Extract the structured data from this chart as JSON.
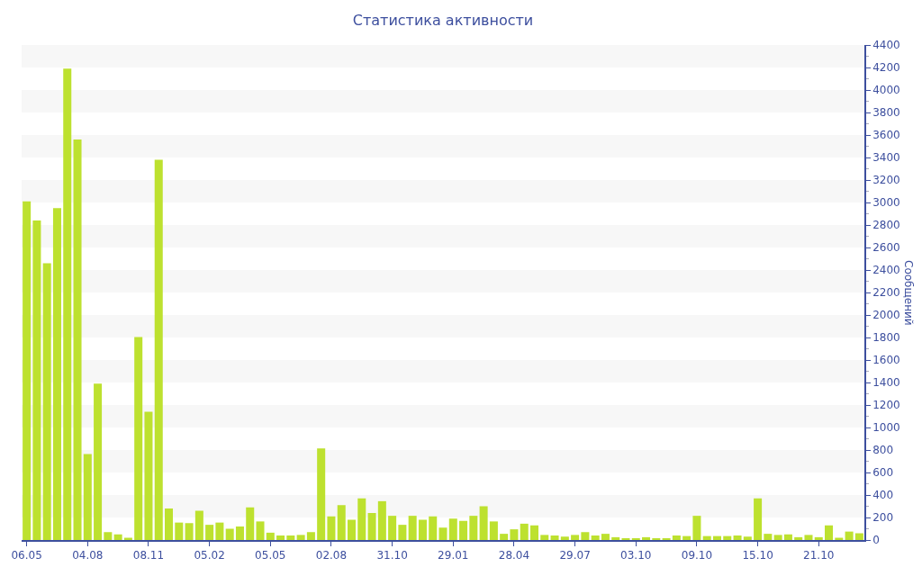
{
  "chart_data": {
    "type": "bar",
    "title": "Статистика активности",
    "ylabel": "Сообщений",
    "categories": [
      "06.05",
      null,
      null,
      null,
      null,
      null,
      "04.08",
      null,
      null,
      null,
      null,
      null,
      "08.11",
      null,
      null,
      null,
      null,
      null,
      "05.02",
      null,
      null,
      null,
      null,
      null,
      "05.05",
      null,
      null,
      null,
      null,
      null,
      "02.08",
      null,
      null,
      null,
      null,
      null,
      "31.10",
      null,
      null,
      null,
      null,
      null,
      "29.01",
      null,
      null,
      null,
      null,
      null,
      "28.04",
      null,
      null,
      null,
      null,
      null,
      "29.07",
      null,
      null,
      null,
      null,
      null,
      "03.10",
      null,
      null,
      null,
      null,
      null,
      "09.10",
      null,
      null,
      null,
      null,
      null,
      "15.10",
      null,
      null,
      null,
      null,
      null,
      "21.10",
      null,
      null,
      null,
      null
    ],
    "values": [
      3010,
      2840,
      2460,
      2950,
      4190,
      3560,
      765,
      1390,
      70,
      50,
      20,
      1805,
      1140,
      3380,
      280,
      155,
      150,
      260,
      135,
      155,
      100,
      120,
      290,
      165,
      65,
      40,
      40,
      45,
      70,
      815,
      210,
      310,
      180,
      370,
      240,
      345,
      215,
      135,
      215,
      180,
      210,
      110,
      190,
      170,
      215,
      300,
      165,
      55,
      95,
      145,
      130,
      45,
      40,
      30,
      45,
      70,
      40,
      55,
      25,
      15,
      10,
      25,
      15,
      15,
      40,
      35,
      215,
      35,
      35,
      35,
      40,
      30,
      370,
      55,
      45,
      50,
      25,
      45,
      25,
      130,
      20,
      75,
      60
    ],
    "color": "#bde12f",
    "ylim": [
      0,
      4400
    ],
    "yticks": [
      0,
      200,
      400,
      600,
      800,
      1000,
      1200,
      1400,
      1600,
      1800,
      2000,
      2200,
      2400,
      2600,
      2800,
      3000,
      3200,
      3400,
      3600,
      3800,
      4000,
      4200,
      4400
    ],
    "grid": false
  }
}
